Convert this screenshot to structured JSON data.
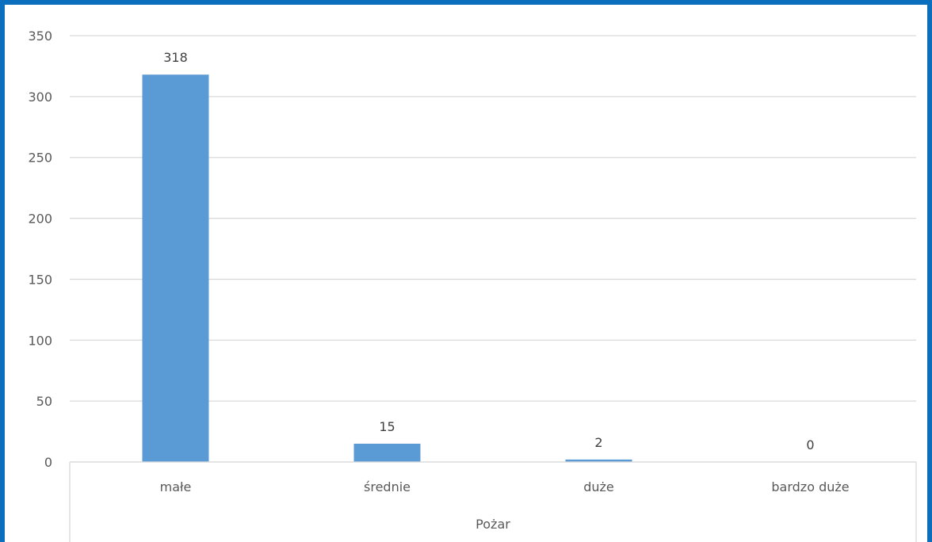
{
  "chart_data": {
    "type": "bar",
    "categories": [
      "małe",
      "średnie",
      "duże",
      "bardzo duże"
    ],
    "values": [
      318,
      15,
      2,
      0
    ],
    "data_labels": [
      "318",
      "15",
      "2",
      "0"
    ],
    "title": "",
    "xlabel": "Pożar",
    "ylabel": "",
    "ylim": [
      0,
      350
    ],
    "yticks": [
      0,
      50,
      100,
      150,
      200,
      250,
      300,
      350
    ],
    "ytick_labels": [
      "0",
      "50",
      "100",
      "150",
      "200",
      "250",
      "300",
      "350"
    ],
    "grid": true,
    "legend": "none",
    "bar_color": "#5b9bd5",
    "gridline_color": "#d9d9d9",
    "frame_color": "#0b6fbd"
  }
}
